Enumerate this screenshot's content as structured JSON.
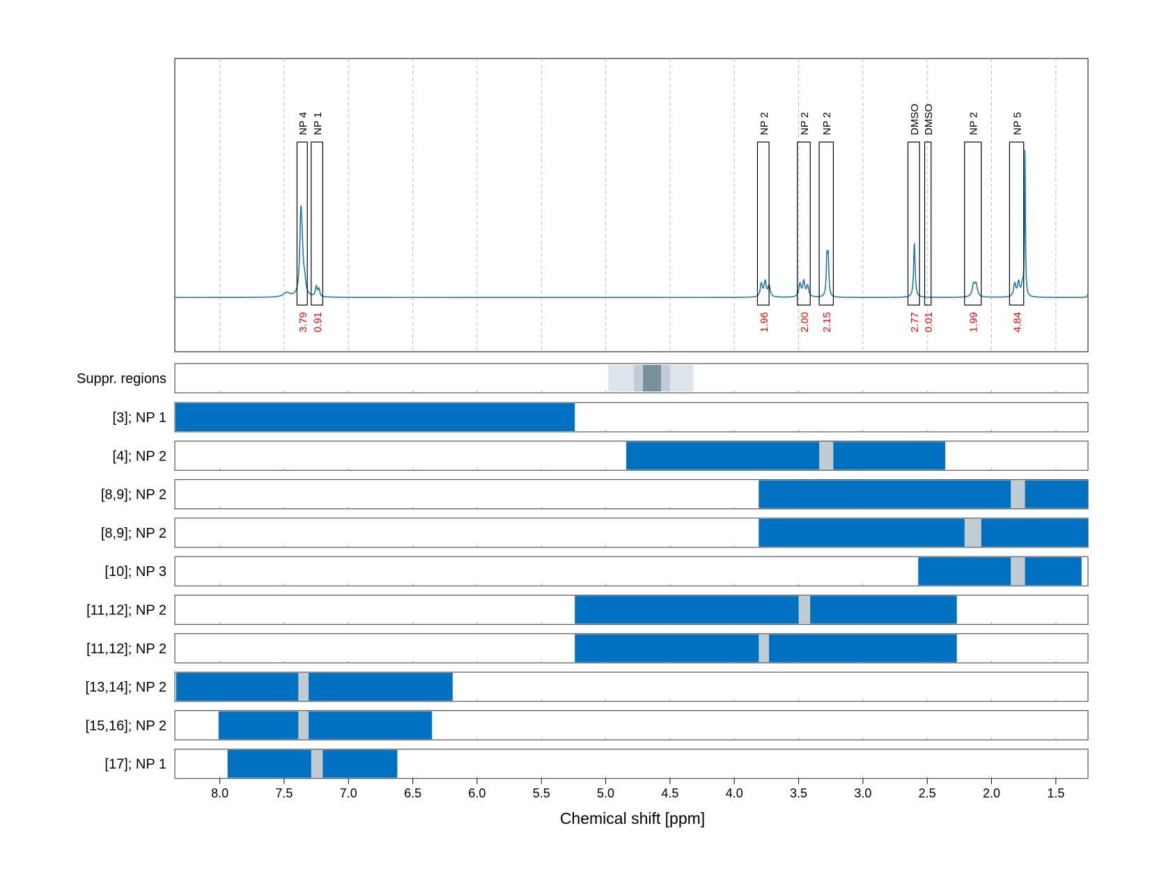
{
  "chart_data": {
    "type": "line",
    "xlabel": "Chemical shift [ppm]",
    "x_reversed": true,
    "xlim": [
      8.35,
      1.25
    ],
    "x_ticks": [
      "8.0",
      "7.5",
      "7.0",
      "6.5",
      "6.0",
      "5.5",
      "5.0",
      "4.5",
      "4.0",
      "3.5",
      "3.0",
      "2.5",
      "2.0",
      "1.5"
    ],
    "grid": true,
    "colors": {
      "spectrum": "#1f77b4",
      "bar": "#0070c0",
      "gap": "#c0ccd2",
      "integral": "#ff0000",
      "frame": "#555555"
    },
    "spectrum_peaks": [
      {
        "center": 7.48,
        "height": 0.02,
        "width": 0.03
      },
      {
        "center": 7.37,
        "height": 0.33,
        "width": 0.01
      },
      {
        "center": 7.36,
        "height": 0.14,
        "width": 0.012
      },
      {
        "center": 7.34,
        "height": 0.05,
        "width": 0.01
      },
      {
        "center": 7.25,
        "height": 0.045,
        "width": 0.008
      },
      {
        "center": 7.23,
        "height": 0.035,
        "width": 0.008
      },
      {
        "center": 3.79,
        "height": 0.06,
        "width": 0.01
      },
      {
        "center": 3.76,
        "height": 0.07,
        "width": 0.01
      },
      {
        "center": 3.73,
        "height": 0.05,
        "width": 0.01
      },
      {
        "center": 3.49,
        "height": 0.06,
        "width": 0.01
      },
      {
        "center": 3.46,
        "height": 0.07,
        "width": 0.01
      },
      {
        "center": 3.43,
        "height": 0.05,
        "width": 0.01
      },
      {
        "center": 3.28,
        "height": 0.17,
        "width": 0.006
      },
      {
        "center": 3.27,
        "height": 0.17,
        "width": 0.006
      },
      {
        "center": 2.6,
        "height": 0.25,
        "width": 0.007
      },
      {
        "center": 2.14,
        "height": 0.055,
        "width": 0.012
      },
      {
        "center": 2.12,
        "height": 0.055,
        "width": 0.012
      },
      {
        "center": 1.82,
        "height": 0.06,
        "width": 0.01
      },
      {
        "center": 1.79,
        "height": 0.065,
        "width": 0.01
      },
      {
        "center": 1.76,
        "height": 0.05,
        "width": 0.01
      },
      {
        "center": 1.74,
        "height": 0.67,
        "width": 0.004
      },
      {
        "center": 1.25,
        "height": 0.015,
        "width": 0.006
      }
    ],
    "spectrum_ylim": [
      -0.25,
      1.1
    ],
    "integration_regions": [
      {
        "label": "NP 4",
        "from": 7.4,
        "to": 7.32,
        "integral": "3.79"
      },
      {
        "label": "NP 1",
        "from": 7.29,
        "to": 7.2,
        "integral": "0.91"
      },
      {
        "label": "NP 2",
        "from": 3.82,
        "to": 3.73,
        "integral": "1.96"
      },
      {
        "label": "NP 2",
        "from": 3.51,
        "to": 3.41,
        "integral": "2.00"
      },
      {
        "label": "NP 2",
        "from": 3.34,
        "to": 3.23,
        "integral": "2.15"
      },
      {
        "label": "DMSO",
        "from": 2.65,
        "to": 2.56,
        "integral": "2.77"
      },
      {
        "label": "DMSO",
        "from": 2.52,
        "to": 2.47,
        "integral": "0.01"
      },
      {
        "label": "NP 2",
        "from": 2.21,
        "to": 2.08,
        "integral": "1.99"
      },
      {
        "label": "NP 5",
        "from": 1.86,
        "to": 1.75,
        "integral": "4.84"
      }
    ],
    "suppression_label": "Suppr. regions",
    "suppression_regions": [
      {
        "from": 4.98,
        "to": 4.32,
        "shade": "#dde4eb"
      },
      {
        "from": 4.78,
        "to": 4.5,
        "shade": "#bfccd6"
      },
      {
        "from": 4.71,
        "to": 4.57,
        "shade": "#78909c"
      }
    ],
    "rows": [
      {
        "label": "[3]; NP 1",
        "bar": [
          8.35,
          5.24
        ],
        "gaps": []
      },
      {
        "label": "[4]; NP 2",
        "bar": [
          4.84,
          2.36
        ],
        "gaps": [
          [
            3.34,
            3.23
          ]
        ]
      },
      {
        "label": "[8,9]; NP 2",
        "bar": [
          3.81,
          1.25
        ],
        "gaps": [
          [
            1.85,
            1.74
          ]
        ]
      },
      {
        "label": "[8,9]; NP 2",
        "bar": [
          3.81,
          1.25
        ],
        "gaps": [
          [
            2.21,
            2.08
          ]
        ]
      },
      {
        "label": "[10]; NP 3",
        "bar": [
          2.57,
          1.3
        ],
        "gaps": [
          [
            1.85,
            1.74
          ]
        ]
      },
      {
        "label": "[11,12]; NP 2",
        "bar": [
          5.24,
          2.27
        ],
        "gaps": [
          [
            3.5,
            3.41
          ]
        ]
      },
      {
        "label": "[11,12]; NP 2",
        "bar": [
          5.24,
          2.27
        ],
        "gaps": [
          [
            3.81,
            3.73
          ]
        ]
      },
      {
        "label": "[13,14]; NP 2",
        "bar": [
          8.34,
          6.19
        ],
        "gaps": [
          [
            7.39,
            7.31
          ]
        ]
      },
      {
        "label": "[15,16]; NP 2",
        "bar": [
          8.01,
          6.35
        ],
        "gaps": [
          [
            7.39,
            7.31
          ]
        ]
      },
      {
        "label": "[17]; NP 1",
        "bar": [
          7.94,
          6.62
        ],
        "gaps": [
          [
            7.29,
            7.2
          ]
        ]
      }
    ]
  }
}
